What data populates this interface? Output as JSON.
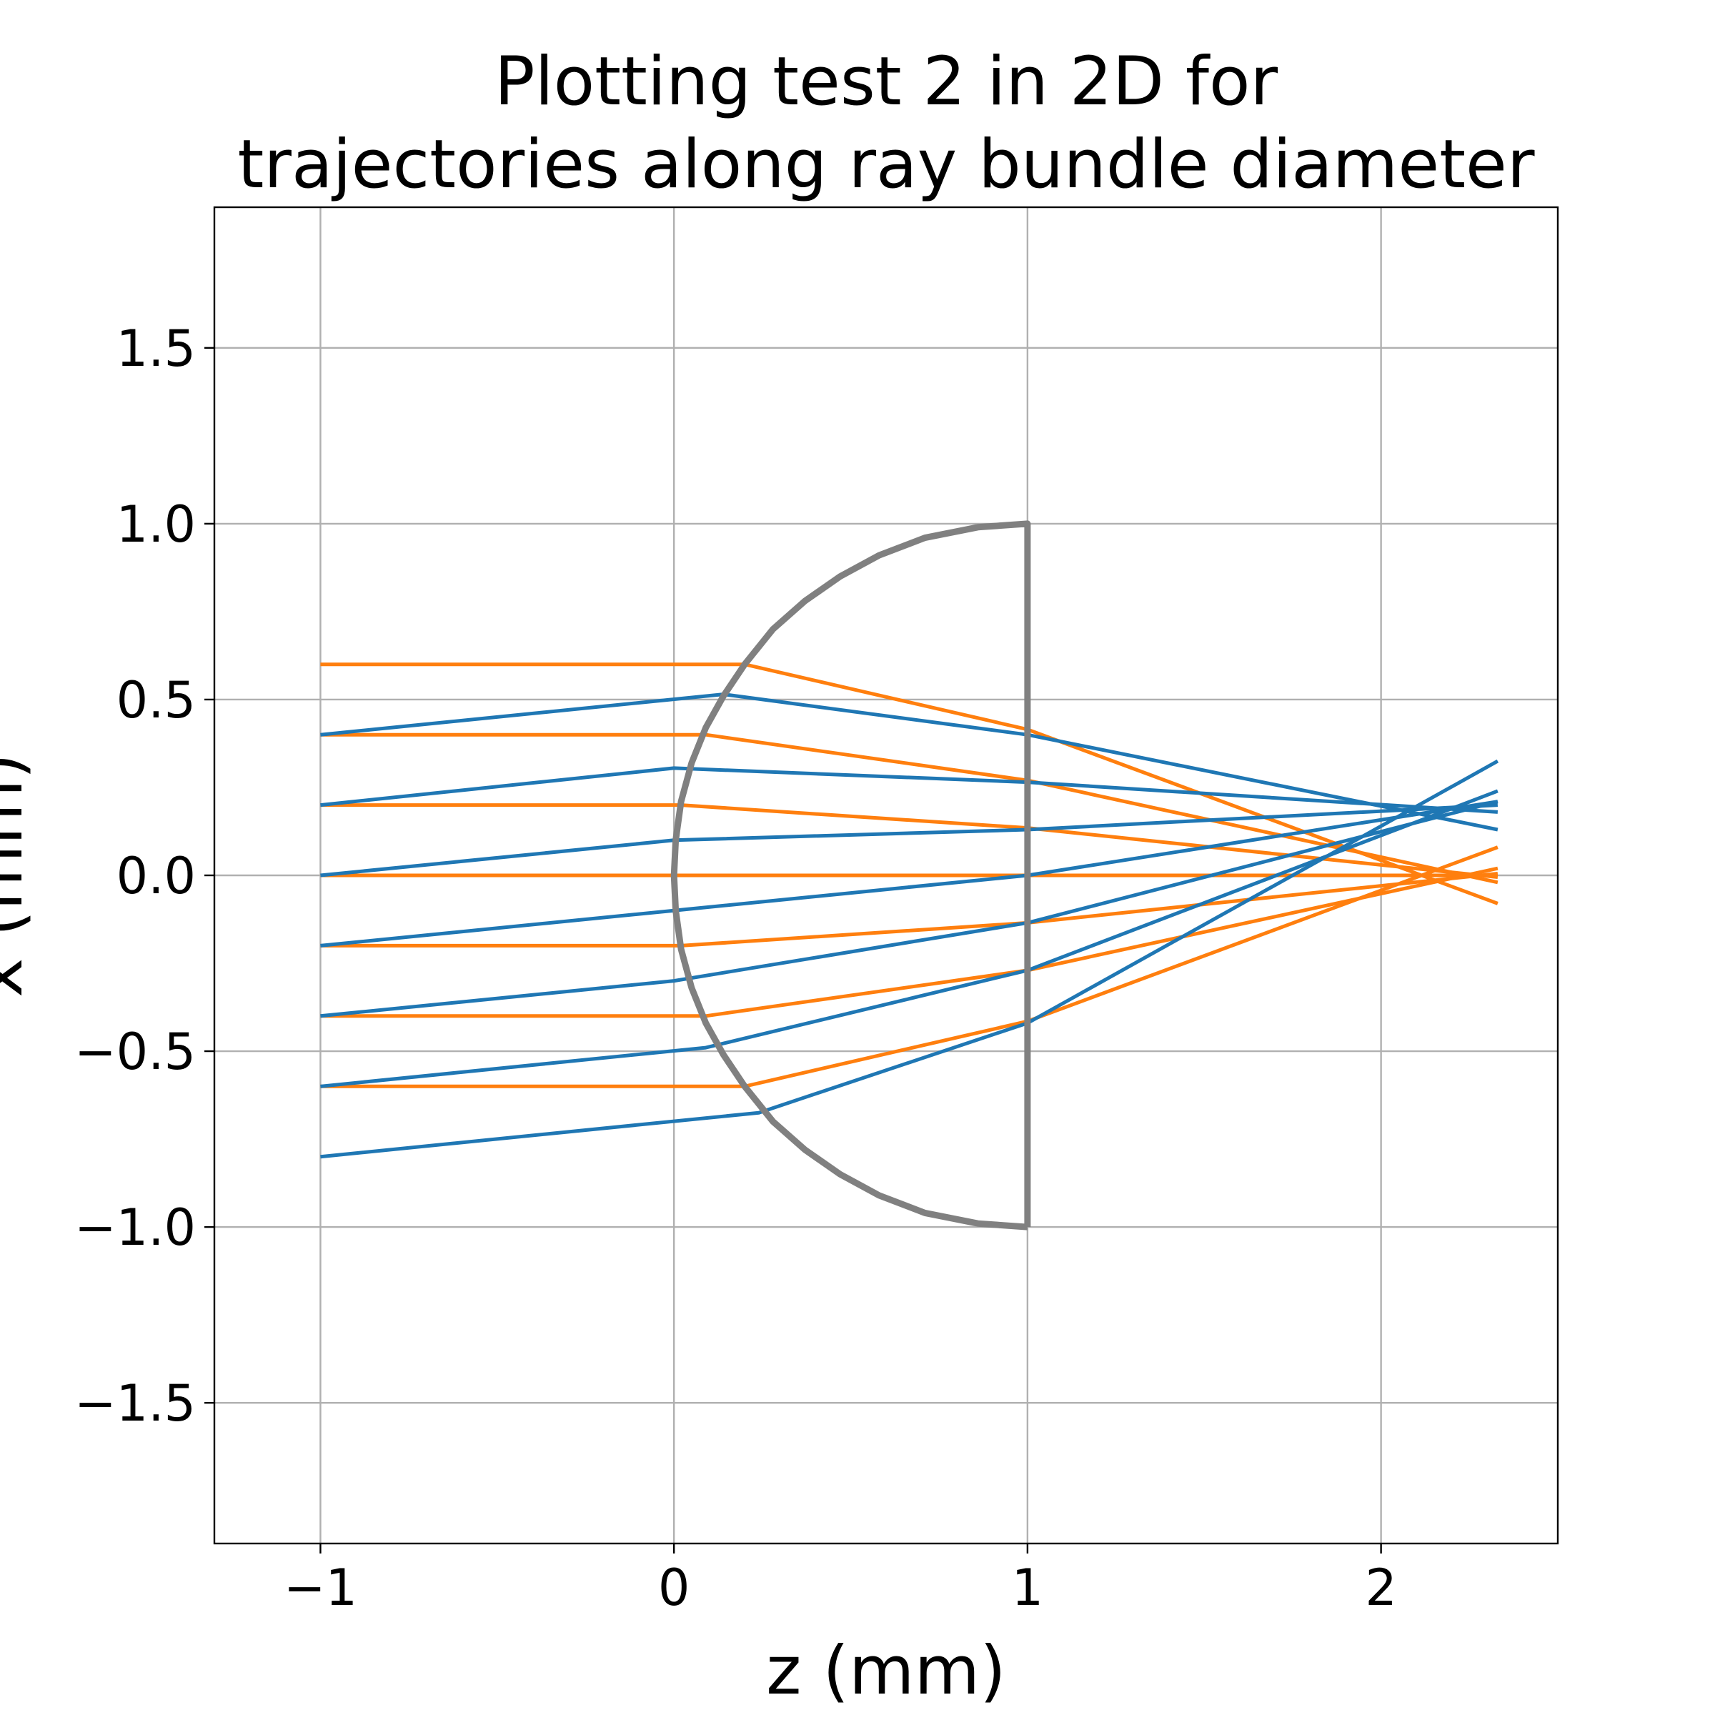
{
  "chart_data": {
    "type": "line",
    "title_lines": [
      "Plotting test 2 in 2D for",
      "trajectories along ray bundle diameter"
    ],
    "xlabel": "z (mm)",
    "ylabel": "x (mm)",
    "xlim": [
      -1.3,
      2.5
    ],
    "ylim": [
      -1.9,
      1.9
    ],
    "xticks": [
      {
        "value": -1,
        "label": "−1"
      },
      {
        "value": 0,
        "label": "0"
      },
      {
        "value": 1,
        "label": "1"
      },
      {
        "value": 2,
        "label": "2"
      }
    ],
    "yticks": [
      {
        "value": -1.5,
        "label": "−1.5"
      },
      {
        "value": -1.0,
        "label": "−1.0"
      },
      {
        "value": -0.5,
        "label": "−0.5"
      },
      {
        "value": 0.0,
        "label": "0.0"
      },
      {
        "value": 0.5,
        "label": "0.5"
      },
      {
        "value": 1.0,
        "label": "1.0"
      },
      {
        "value": 1.5,
        "label": "1.5"
      }
    ],
    "grid": true,
    "colors": {
      "lens": "#808080",
      "series_blue": "#1f77b4",
      "series_orange": "#ff7f0e"
    },
    "lens": {
      "points": [
        [
          1.0,
          -1.0
        ],
        [
          0.86,
          -0.99
        ],
        [
          0.71,
          -0.96
        ],
        [
          0.58,
          -0.91
        ],
        [
          0.47,
          -0.85
        ],
        [
          0.37,
          -0.78
        ],
        [
          0.28,
          -0.7
        ],
        [
          0.2,
          -0.6
        ],
        [
          0.14,
          -0.51
        ],
        [
          0.09,
          -0.42
        ],
        [
          0.05,
          -0.32
        ],
        [
          0.02,
          -0.21
        ],
        [
          0.005,
          -0.1
        ],
        [
          0.0,
          0.0
        ],
        [
          0.005,
          0.1
        ],
        [
          0.02,
          0.21
        ],
        [
          0.05,
          0.32
        ],
        [
          0.09,
          0.42
        ],
        [
          0.14,
          0.51
        ],
        [
          0.2,
          0.6
        ],
        [
          0.28,
          0.7
        ],
        [
          0.37,
          0.78
        ],
        [
          0.47,
          0.85
        ],
        [
          0.58,
          0.91
        ],
        [
          0.71,
          0.96
        ],
        [
          0.86,
          0.99
        ],
        [
          1.0,
          1.0
        ],
        [
          1.0,
          -1.0
        ]
      ]
    },
    "series": [
      {
        "color": "blue",
        "points": [
          [
            -1,
            0.4
          ],
          [
            0.14,
            0.515
          ],
          [
            1,
            0.4
          ],
          [
            2.33,
            0.13
          ]
        ]
      },
      {
        "color": "blue",
        "points": [
          [
            -1,
            0.2
          ],
          [
            0.0,
            0.305
          ],
          [
            1,
            0.265
          ],
          [
            2.33,
            0.18
          ]
        ]
      },
      {
        "color": "blue",
        "points": [
          [
            -1,
            0.0
          ],
          [
            0.0,
            0.1
          ],
          [
            1,
            0.13
          ],
          [
            2.33,
            0.2
          ]
        ]
      },
      {
        "color": "blue",
        "points": [
          [
            -1,
            -0.2
          ],
          [
            0.0,
            -0.1
          ],
          [
            1,
            0.0
          ],
          [
            2.33,
            0.21
          ]
        ]
      },
      {
        "color": "blue",
        "points": [
          [
            -1,
            -0.4
          ],
          [
            0.0,
            -0.3
          ],
          [
            1,
            -0.135
          ],
          [
            2.33,
            0.21
          ]
        ]
      },
      {
        "color": "blue",
        "points": [
          [
            -1,
            -0.6
          ],
          [
            0.09,
            -0.49
          ],
          [
            1,
            -0.27
          ],
          [
            2.33,
            0.24
          ]
        ]
      },
      {
        "color": "blue",
        "points": [
          [
            -1,
            -0.8
          ],
          [
            0.24,
            -0.675
          ],
          [
            1,
            -0.42
          ],
          [
            2.33,
            0.325
          ]
        ]
      },
      {
        "color": "orange",
        "points": [
          [
            -1,
            0.6
          ],
          [
            0.2,
            0.6
          ],
          [
            1,
            0.415
          ],
          [
            2.33,
            -0.08
          ]
        ]
      },
      {
        "color": "orange",
        "points": [
          [
            -1,
            0.4
          ],
          [
            0.09,
            0.4
          ],
          [
            1,
            0.27
          ],
          [
            2.33,
            -0.02
          ]
        ]
      },
      {
        "color": "orange",
        "points": [
          [
            -1,
            0.2
          ],
          [
            0.02,
            0.2
          ],
          [
            1,
            0.135
          ],
          [
            2.33,
            -0.005
          ]
        ]
      },
      {
        "color": "orange",
        "points": [
          [
            -1,
            0.0
          ],
          [
            0.0,
            0.0
          ],
          [
            1,
            0.0
          ],
          [
            2.33,
            0.0
          ]
        ]
      },
      {
        "color": "orange",
        "points": [
          [
            -1,
            -0.2
          ],
          [
            0.02,
            -0.2
          ],
          [
            1,
            -0.135
          ],
          [
            2.33,
            0.005
          ]
        ]
      },
      {
        "color": "orange",
        "points": [
          [
            -1,
            -0.4
          ],
          [
            0.09,
            -0.4
          ],
          [
            1,
            -0.27
          ],
          [
            2.33,
            0.02
          ]
        ]
      },
      {
        "color": "orange",
        "points": [
          [
            -1,
            -0.6
          ],
          [
            0.2,
            -0.6
          ],
          [
            1,
            -0.415
          ],
          [
            2.33,
            0.08
          ]
        ]
      }
    ]
  }
}
